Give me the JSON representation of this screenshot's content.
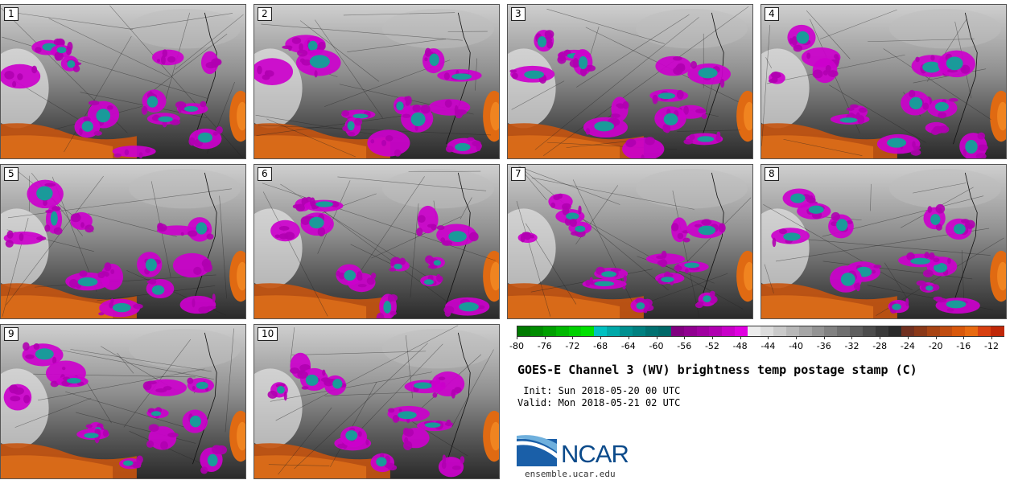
{
  "panels": [
    {
      "number": "1"
    },
    {
      "number": "2"
    },
    {
      "number": "3"
    },
    {
      "number": "4"
    },
    {
      "number": "5"
    },
    {
      "number": "6"
    },
    {
      "number": "7"
    },
    {
      "number": "8"
    },
    {
      "number": "9"
    },
    {
      "number": "10"
    }
  ],
  "colorbar": {
    "ticks": [
      "-80",
      "-76",
      "-72",
      "-68",
      "-64",
      "-60",
      "-56",
      "-52",
      "-48",
      "-44",
      "-40",
      "-36",
      "-32",
      "-28",
      "-24",
      "-20",
      "-16",
      "-12"
    ],
    "colors": [
      "#007a00",
      "#008c00",
      "#00a000",
      "#00b800",
      "#00d000",
      "#00e000",
      "#00c0c0",
      "#00a8a8",
      "#009090",
      "#008080",
      "#007070",
      "#006868",
      "#800080",
      "#900090",
      "#a000a0",
      "#b000b0",
      "#c800c8",
      "#e000e0",
      "#ececec",
      "#dcdcdc",
      "#cacaca",
      "#b8b8b8",
      "#a6a6a6",
      "#949494",
      "#828282",
      "#707070",
      "#5e5e5e",
      "#4c4c4c",
      "#3a3a3a",
      "#2a2a2a",
      "#703020",
      "#8a3818",
      "#a84414",
      "#c04c10",
      "#d8580c",
      "#e86a10",
      "#d84010",
      "#c02808"
    ]
  },
  "title": "GOES-E Channel 3 (WV) brightness temp postage stamp (C)",
  "init_line": " Init: Sun 2018-05-20 00 UTC",
  "valid_line": "Valid: Mon 2018-05-21 02 UTC",
  "logo_text": "NCAR",
  "site": "ensemble.ucar.edu"
}
